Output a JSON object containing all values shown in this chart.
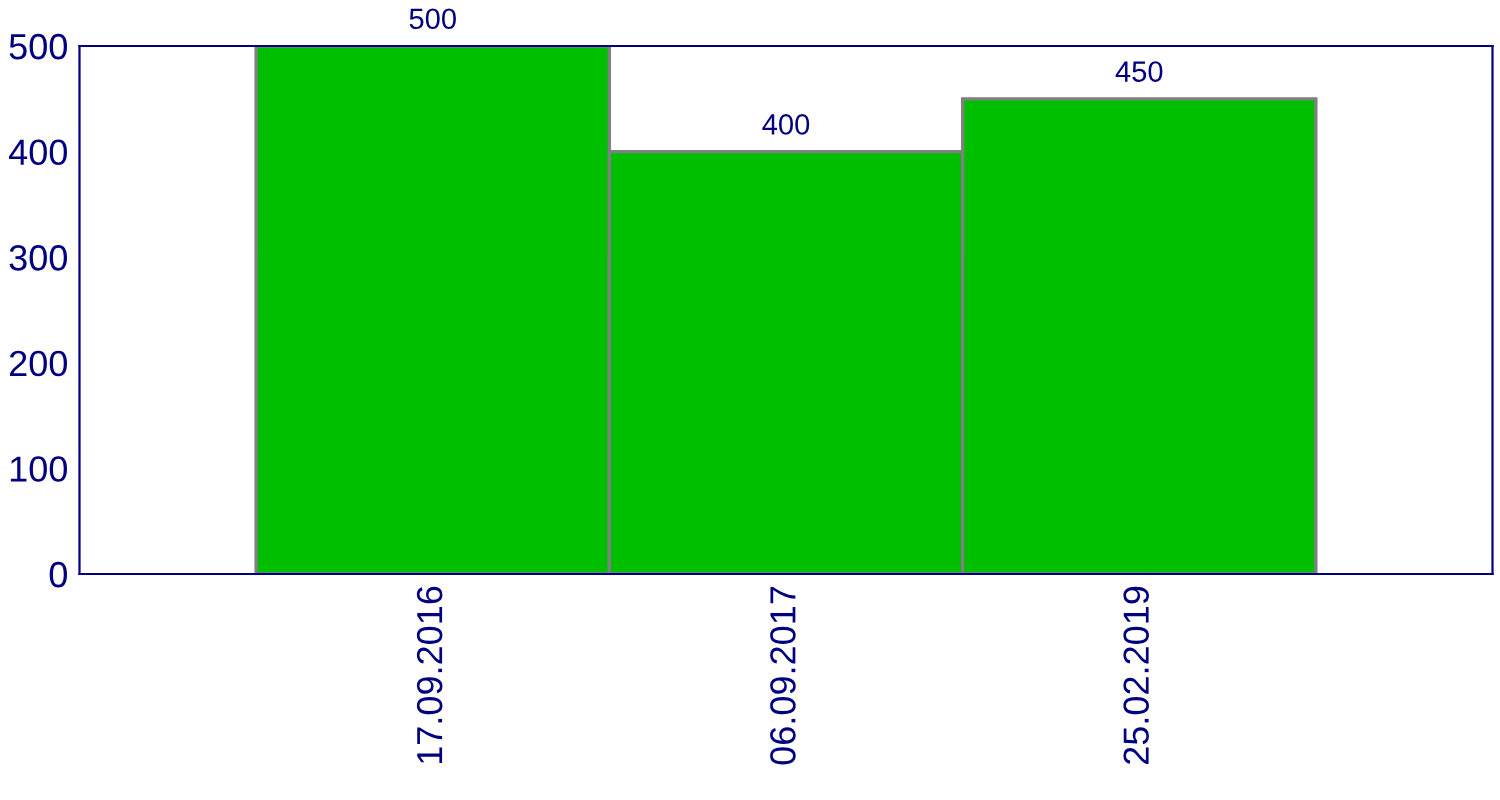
{
  "chart_data": {
    "type": "bar",
    "categories": [
      "17.09.2016",
      "06.09.2017",
      "25.02.2019"
    ],
    "values": [
      500,
      400,
      450
    ],
    "color": "#00bf00",
    "ylim": [
      0,
      500
    ],
    "yticks": [
      0,
      100,
      200,
      300,
      400,
      500
    ],
    "data_labels": true,
    "grid": false
  }
}
